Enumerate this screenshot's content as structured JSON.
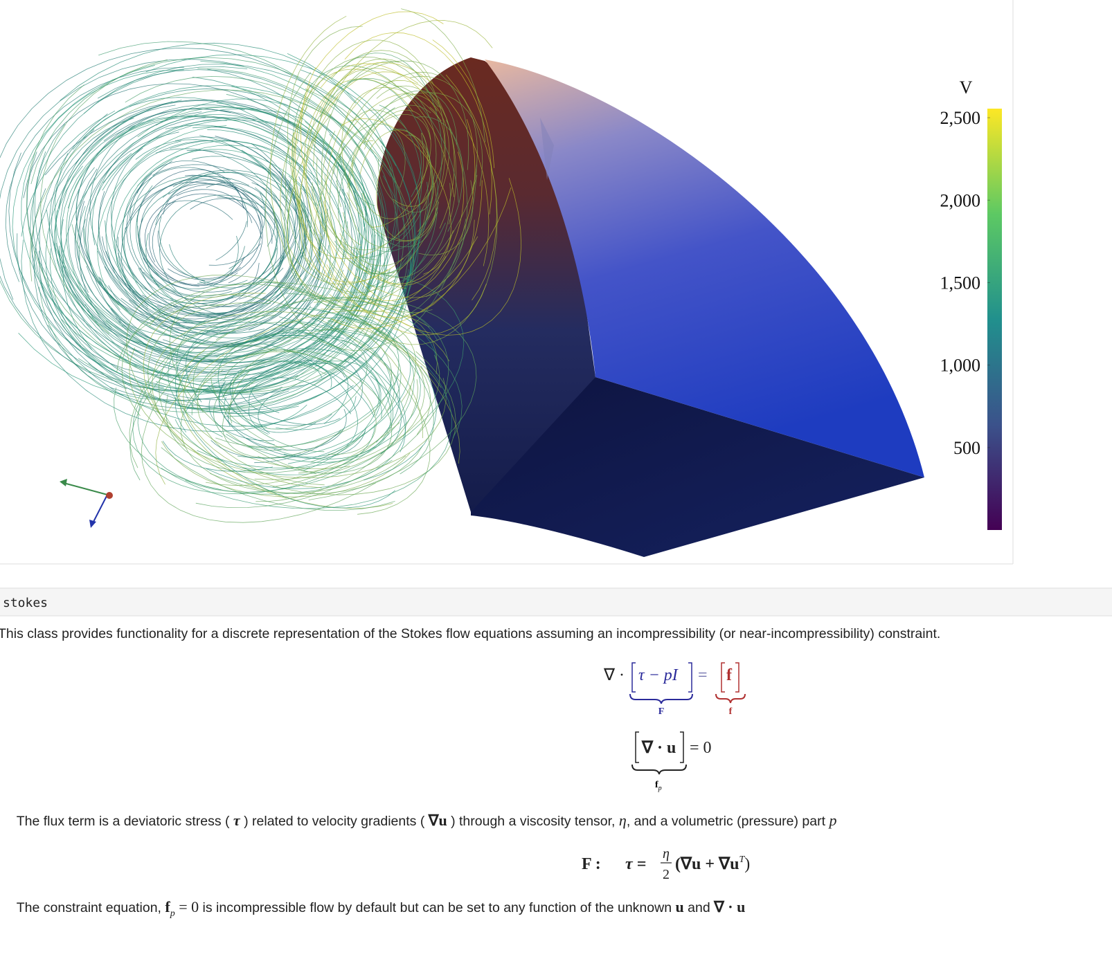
{
  "figure": {
    "colorbar": {
      "title": "V",
      "lim": [
        0,
        2555
      ],
      "ticks": [
        {
          "value": 2500,
          "label": "2,500"
        },
        {
          "value": 2000,
          "label": "2,000"
        },
        {
          "value": 1500,
          "label": "1,500"
        },
        {
          "value": 1000,
          "label": "1,000"
        },
        {
          "value": 500,
          "label": "500"
        }
      ]
    }
  },
  "section": {
    "title": "stokes",
    "intro": "This class provides functionality for a discrete representation of the Stokes flow equations assuming an incompressibility (or near-incompressibility) constraint.",
    "equation_1": {
      "operator": "∇ ·",
      "flux": "τ − pI",
      "equals": "=",
      "force": "f",
      "flux_label": "F",
      "force_label": "f"
    },
    "equation_2": {
      "constraint": "∇ · u",
      "rhs": "= 0",
      "label": "f",
      "label_sub": "p"
    },
    "flux_text": [
      "The flux term is a deviatoric stress ( ",
      "τ",
      " ) related to velocity gradients ( ",
      "∇u",
      " ) through a viscosity tensor, ",
      "η",
      ", and a volumetric (pressure) part ",
      "p"
    ],
    "equation_3": {
      "label": "F :",
      "lhs": "τ =",
      "numerator": "η",
      "denominator": "2",
      "body": "(∇u + ∇u",
      "superscript": "T",
      "close": ")"
    },
    "constraint_text": [
      "The constraint equation, ",
      "f",
      "p",
      " = 0",
      " is incompressible flow by default but can be set to any function of the unknown ",
      "u",
      " and ",
      "∇ · u"
    ]
  }
}
